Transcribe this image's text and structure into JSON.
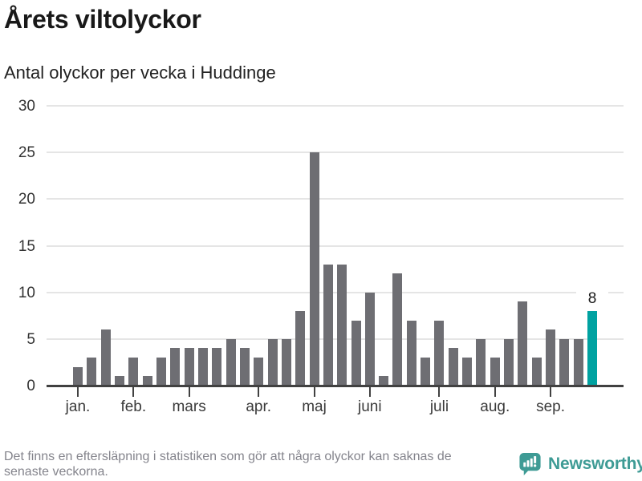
{
  "header": {
    "title": "Årets viltolyckor",
    "subtitle": "Antal olyckor per vecka i Huddinge"
  },
  "chart_data": {
    "type": "bar",
    "title": "Årets viltolyckor",
    "subtitle": "Antal olyckor per vecka i Huddinge",
    "x_unit": "vecka",
    "values": [
      2,
      3,
      6,
      1,
      3,
      1,
      3,
      4,
      4,
      4,
      4,
      5,
      4,
      3,
      5,
      5,
      8,
      25,
      13,
      13,
      7,
      10,
      1,
      12,
      7,
      3,
      7,
      4,
      3,
      5,
      3,
      5,
      9,
      3,
      6,
      5,
      5,
      8
    ],
    "highlight": {
      "index": 37,
      "value": 8,
      "label": "8"
    },
    "y_ticks": [
      0,
      5,
      10,
      15,
      20,
      25,
      30
    ],
    "ylim": [
      0,
      30
    ],
    "month_ticks": [
      {
        "index": 0,
        "label": "jan."
      },
      {
        "index": 4,
        "label": "feb."
      },
      {
        "index": 8,
        "label": "mars"
      },
      {
        "index": 13,
        "label": "apr."
      },
      {
        "index": 17,
        "label": "maj"
      },
      {
        "index": 21,
        "label": "juni"
      },
      {
        "index": 26,
        "label": "juli"
      },
      {
        "index": 30,
        "label": "aug."
      },
      {
        "index": 34,
        "label": "sep."
      }
    ],
    "grid": true,
    "legend": false,
    "colors": {
      "bar": "#6e6e73",
      "highlight": "#00a2a1",
      "gridline": "#e5e5e5",
      "axis": "#414141"
    }
  },
  "footer": {
    "note_lines": [
      "Det finns en eftersläpning i statistiken som gör att några olyckor kan saknas de",
      "senaste veckorna."
    ],
    "brand": {
      "name": "Newsworthy",
      "color": "#3e9b95",
      "icon": "newsworthy-bubble-chart-icon"
    }
  }
}
